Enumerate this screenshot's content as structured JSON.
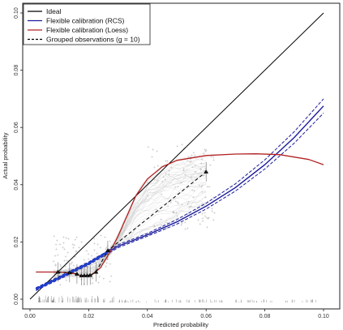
{
  "chart_data": {
    "type": "line",
    "title": "",
    "xlabel": "Predicted probability",
    "ylabel": "Actual probability",
    "xlim": [
      0,
      0.1
    ],
    "ylim": [
      0,
      0.1
    ],
    "x_ticks": [
      "0.00",
      "0.02",
      "0.04",
      "0.06",
      "0.08",
      "0.10"
    ],
    "y_ticks": [
      "0.00",
      "0.02",
      "0.04",
      "0.06",
      "0.08",
      "0.10"
    ],
    "grid": false,
    "legend_position": "top-left",
    "legend": [
      {
        "label": "Ideal",
        "color": "#000000",
        "dash": "solid"
      },
      {
        "label": "Flexible calibration (RCS)",
        "color": "#1a1a9c",
        "dash": "solid"
      },
      {
        "label": "Flexible calibration (Loess)",
        "color": "#b22222",
        "dash": "solid"
      },
      {
        "label": "Grouped observations (g = 10)",
        "color": "#000000",
        "dash": "dashed"
      }
    ],
    "series": [
      {
        "name": "Ideal",
        "color": "#000000",
        "x": [
          0,
          0.1
        ],
        "y": [
          0,
          0.1
        ]
      },
      {
        "name": "Flexible calibration (RCS)",
        "color": "#1a1a9c",
        "x": [
          0.002,
          0.01,
          0.02,
          0.03,
          0.04,
          0.05,
          0.06,
          0.07,
          0.08,
          0.09,
          0.1
        ],
        "y": [
          0.0035,
          0.0075,
          0.0125,
          0.0185,
          0.0225,
          0.027,
          0.0325,
          0.039,
          0.047,
          0.0565,
          0.0675
        ],
        "ci_lower": [
          0.003,
          0.007,
          0.012,
          0.018,
          0.022,
          0.0262,
          0.0315,
          0.0378,
          0.0455,
          0.0545,
          0.065
        ],
        "ci_upper": [
          0.004,
          0.008,
          0.013,
          0.019,
          0.023,
          0.0278,
          0.0335,
          0.0403,
          0.0487,
          0.0585,
          0.07
        ]
      },
      {
        "name": "Flexible calibration (Loess)",
        "color": "#b22222",
        "x": [
          0.002,
          0.01,
          0.015,
          0.018,
          0.021,
          0.024,
          0.027,
          0.03,
          0.033,
          0.036,
          0.04,
          0.045,
          0.05,
          0.06,
          0.07,
          0.077,
          0.085,
          0.095,
          0.1
        ],
        "y": [
          0.0095,
          0.0095,
          0.009,
          0.008,
          0.0085,
          0.011,
          0.016,
          0.022,
          0.029,
          0.036,
          0.042,
          0.0462,
          0.0485,
          0.0502,
          0.0507,
          0.0508,
          0.0505,
          0.0488,
          0.047
        ]
      },
      {
        "name": "Grouped observations (g = 10)",
        "color": "#000000",
        "x": [
          0.0095,
          0.0135,
          0.016,
          0.0175,
          0.0185,
          0.0195,
          0.0205,
          0.0225,
          0.0265,
          0.06
        ],
        "y": [
          0.0095,
          0.0093,
          0.0088,
          0.0082,
          0.0083,
          0.0083,
          0.0084,
          0.0095,
          0.017,
          0.0445
        ]
      }
    ]
  }
}
